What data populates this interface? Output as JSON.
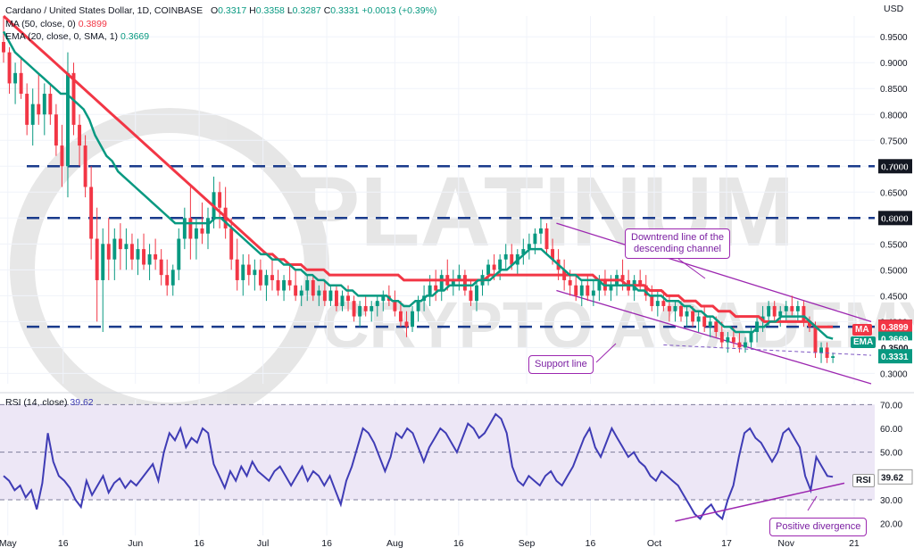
{
  "header": {
    "symbol": "Cardano / United States Dollar, 1D, COINBASE",
    "o_label": "O",
    "o": "0.3317",
    "h_label": "H",
    "h": "0.3358",
    "l_label": "L",
    "l": "0.3287",
    "c_label": "C",
    "c": "0.3331",
    "change": "+0.0013 (+0.39%)",
    "ma_line": "MA (50, close, 0)",
    "ma_value": "0.3899",
    "ema_line": "EMA (20, close, 0, SMA, 1)",
    "ema_value": "0.3669",
    "rsi_line": "RSI (14, close)",
    "rsi_value": "39.62",
    "currency": "USD"
  },
  "tags": {
    "ma_label": "MA",
    "ma_value": "0.3899",
    "ema_label": "EMA",
    "ema_value": "0.3669",
    "hidden_value": "0.3500",
    "price_value": "0.3331",
    "rsi_label": "RSI",
    "rsi_value": "39.62"
  },
  "annotations": {
    "downtrend": [
      "Downtrend line of the",
      "descending channel"
    ],
    "support": "Support line",
    "divergence": "Positive divergence"
  },
  "watermark": {
    "line1": "PLATINUM",
    "line2": "CRYPTO ACADEMY"
  },
  "colors": {
    "up": "#089981",
    "down": "#f23645",
    "ma": "#f23645",
    "ema": "#089981",
    "rsi": "#3f3cb5",
    "level": "#1a3b8c",
    "channel": "#9c27b0",
    "rsi_band": "#ede7f6"
  },
  "chart_data": {
    "type": "candlestick",
    "title": "Cardano / United States Dollar, 1D, COINBASE",
    "ylabel": "USD",
    "ylim": [
      0.28,
      0.99
    ],
    "price_ticks": [
      "0.9500",
      "0.9000",
      "0.8500",
      "0.8000",
      "0.7500",
      "0.7000",
      "0.6500",
      "0.6000",
      "0.5500",
      "0.5000",
      "0.4500",
      "0.4000",
      "0.3500",
      "0.3000"
    ],
    "price_tick_values": [
      0.95,
      0.9,
      0.85,
      0.8,
      0.75,
      0.7,
      0.65,
      0.6,
      0.55,
      0.5,
      0.45,
      0.4,
      0.35,
      0.3
    ],
    "x_ticks": [
      "May",
      "16",
      "Jun",
      "16",
      "Jul",
      "16",
      "Aug",
      "16",
      "Sep",
      "16",
      "Oct",
      "17",
      "Nov",
      "21"
    ],
    "x_tick_index": [
      1,
      14,
      31,
      46,
      61,
      76,
      92,
      107,
      123,
      138,
      153,
      170,
      184,
      200
    ],
    "total_days": 205,
    "levels": [
      {
        "value": 0.7,
        "label": "0.7000"
      },
      {
        "value": 0.6,
        "label": "0.6000"
      },
      {
        "value": 0.39,
        "label": "0.3900"
      }
    ],
    "candles": [
      [
        0.94,
        0.99,
        0.9,
        0.92
      ],
      [
        0.92,
        0.93,
        0.84,
        0.86
      ],
      [
        0.86,
        0.9,
        0.82,
        0.88
      ],
      [
        0.88,
        0.91,
        0.83,
        0.84
      ],
      [
        0.84,
        0.86,
        0.76,
        0.78
      ],
      [
        0.78,
        0.85,
        0.74,
        0.82
      ],
      [
        0.82,
        0.88,
        0.78,
        0.8
      ],
      [
        0.8,
        0.86,
        0.76,
        0.84
      ],
      [
        0.84,
        0.86,
        0.78,
        0.8
      ],
      [
        0.8,
        0.82,
        0.72,
        0.74
      ],
      [
        0.74,
        0.78,
        0.66,
        0.7
      ],
      [
        0.7,
        0.92,
        0.64,
        0.88
      ],
      [
        0.88,
        0.9,
        0.76,
        0.78
      ],
      [
        0.78,
        0.8,
        0.7,
        0.74
      ],
      [
        0.74,
        0.76,
        0.64,
        0.66
      ],
      [
        0.66,
        0.7,
        0.52,
        0.56
      ],
      [
        0.56,
        0.62,
        0.4,
        0.48
      ],
      [
        0.48,
        0.58,
        0.38,
        0.55
      ],
      [
        0.55,
        0.6,
        0.48,
        0.52
      ],
      [
        0.52,
        0.58,
        0.48,
        0.56
      ],
      [
        0.56,
        0.59,
        0.5,
        0.54
      ],
      [
        0.54,
        0.58,
        0.5,
        0.55
      ],
      [
        0.55,
        0.57,
        0.5,
        0.52
      ],
      [
        0.52,
        0.56,
        0.49,
        0.54
      ],
      [
        0.54,
        0.57,
        0.5,
        0.51
      ],
      [
        0.51,
        0.55,
        0.48,
        0.53
      ],
      [
        0.53,
        0.56,
        0.5,
        0.52
      ],
      [
        0.52,
        0.54,
        0.47,
        0.49
      ],
      [
        0.49,
        0.52,
        0.45,
        0.47
      ],
      [
        0.47,
        0.51,
        0.45,
        0.5
      ],
      [
        0.5,
        0.58,
        0.48,
        0.56
      ],
      [
        0.56,
        0.62,
        0.54,
        0.6
      ],
      [
        0.6,
        0.66,
        0.52,
        0.56
      ],
      [
        0.56,
        0.6,
        0.52,
        0.58
      ],
      [
        0.58,
        0.63,
        0.55,
        0.57
      ],
      [
        0.57,
        0.62,
        0.54,
        0.6
      ],
      [
        0.6,
        0.68,
        0.58,
        0.65
      ],
      [
        0.65,
        0.67,
        0.58,
        0.62
      ],
      [
        0.62,
        0.66,
        0.56,
        0.58
      ],
      [
        0.58,
        0.6,
        0.5,
        0.52
      ],
      [
        0.52,
        0.56,
        0.46,
        0.48
      ],
      [
        0.48,
        0.53,
        0.45,
        0.51
      ],
      [
        0.51,
        0.53,
        0.47,
        0.49
      ],
      [
        0.49,
        0.52,
        0.46,
        0.5
      ],
      [
        0.5,
        0.52,
        0.46,
        0.47
      ],
      [
        0.47,
        0.5,
        0.44,
        0.49
      ],
      [
        0.49,
        0.52,
        0.46,
        0.48
      ],
      [
        0.48,
        0.5,
        0.45,
        0.46
      ],
      [
        0.46,
        0.49,
        0.44,
        0.48
      ],
      [
        0.48,
        0.51,
        0.46,
        0.47
      ],
      [
        0.47,
        0.5,
        0.44,
        0.45
      ],
      [
        0.45,
        0.47,
        0.43,
        0.46
      ],
      [
        0.46,
        0.49,
        0.44,
        0.48
      ],
      [
        0.48,
        0.49,
        0.44,
        0.45
      ],
      [
        0.45,
        0.47,
        0.43,
        0.46
      ],
      [
        0.46,
        0.48,
        0.43,
        0.44
      ],
      [
        0.44,
        0.47,
        0.43,
        0.46
      ],
      [
        0.46,
        0.47,
        0.42,
        0.43
      ],
      [
        0.43,
        0.46,
        0.42,
        0.45
      ],
      [
        0.45,
        0.47,
        0.42,
        0.44
      ],
      [
        0.44,
        0.45,
        0.4,
        0.41
      ],
      [
        0.41,
        0.44,
        0.39,
        0.43
      ],
      [
        0.43,
        0.45,
        0.41,
        0.42
      ],
      [
        0.42,
        0.44,
        0.4,
        0.43
      ],
      [
        0.43,
        0.45,
        0.41,
        0.44
      ],
      [
        0.44,
        0.46,
        0.42,
        0.45
      ],
      [
        0.45,
        0.47,
        0.43,
        0.44
      ],
      [
        0.44,
        0.46,
        0.41,
        0.42
      ],
      [
        0.42,
        0.44,
        0.39,
        0.4
      ],
      [
        0.4,
        0.42,
        0.37,
        0.39
      ],
      [
        0.39,
        0.43,
        0.38,
        0.42
      ],
      [
        0.42,
        0.45,
        0.4,
        0.44
      ],
      [
        0.44,
        0.47,
        0.42,
        0.45
      ],
      [
        0.45,
        0.49,
        0.43,
        0.47
      ],
      [
        0.47,
        0.5,
        0.44,
        0.46
      ],
      [
        0.46,
        0.5,
        0.44,
        0.49
      ],
      [
        0.49,
        0.52,
        0.46,
        0.47
      ],
      [
        0.47,
        0.5,
        0.45,
        0.48
      ],
      [
        0.48,
        0.51,
        0.46,
        0.49
      ],
      [
        0.49,
        0.5,
        0.45,
        0.46
      ],
      [
        0.46,
        0.48,
        0.43,
        0.44
      ],
      [
        0.44,
        0.48,
        0.42,
        0.47
      ],
      [
        0.47,
        0.5,
        0.45,
        0.49
      ],
      [
        0.49,
        0.52,
        0.47,
        0.51
      ],
      [
        0.51,
        0.53,
        0.48,
        0.5
      ],
      [
        0.5,
        0.53,
        0.48,
        0.52
      ],
      [
        0.52,
        0.55,
        0.5,
        0.53
      ],
      [
        0.53,
        0.55,
        0.5,
        0.51
      ],
      [
        0.51,
        0.54,
        0.49,
        0.53
      ],
      [
        0.53,
        0.56,
        0.51,
        0.54
      ],
      [
        0.54,
        0.57,
        0.52,
        0.55
      ],
      [
        0.55,
        0.58,
        0.53,
        0.57
      ],
      [
        0.57,
        0.6,
        0.55,
        0.58
      ],
      [
        0.58,
        0.59,
        0.53,
        0.54
      ],
      [
        0.54,
        0.56,
        0.51,
        0.52
      ],
      [
        0.52,
        0.54,
        0.48,
        0.5
      ],
      [
        0.5,
        0.52,
        0.46,
        0.48
      ],
      [
        0.48,
        0.5,
        0.45,
        0.47
      ],
      [
        0.47,
        0.49,
        0.44,
        0.45
      ],
      [
        0.45,
        0.48,
        0.43,
        0.47
      ],
      [
        0.47,
        0.49,
        0.44,
        0.45
      ],
      [
        0.45,
        0.48,
        0.43,
        0.46
      ],
      [
        0.46,
        0.49,
        0.44,
        0.48
      ],
      [
        0.48,
        0.5,
        0.45,
        0.46
      ],
      [
        0.46,
        0.49,
        0.44,
        0.47
      ],
      [
        0.47,
        0.5,
        0.45,
        0.49
      ],
      [
        0.49,
        0.52,
        0.46,
        0.48
      ],
      [
        0.48,
        0.5,
        0.45,
        0.46
      ],
      [
        0.46,
        0.49,
        0.44,
        0.48
      ],
      [
        0.48,
        0.5,
        0.46,
        0.47
      ],
      [
        0.47,
        0.49,
        0.44,
        0.45
      ],
      [
        0.45,
        0.47,
        0.42,
        0.43
      ],
      [
        0.43,
        0.46,
        0.41,
        0.44
      ],
      [
        0.44,
        0.46,
        0.42,
        0.43
      ],
      [
        0.43,
        0.45,
        0.4,
        0.42
      ],
      [
        0.42,
        0.44,
        0.4,
        0.43
      ],
      [
        0.43,
        0.44,
        0.4,
        0.41
      ],
      [
        0.41,
        0.43,
        0.39,
        0.42
      ],
      [
        0.42,
        0.43,
        0.39,
        0.4
      ],
      [
        0.4,
        0.42,
        0.38,
        0.41
      ],
      [
        0.41,
        0.43,
        0.38,
        0.39
      ],
      [
        0.39,
        0.41,
        0.37,
        0.4
      ],
      [
        0.4,
        0.41,
        0.37,
        0.38
      ],
      [
        0.38,
        0.4,
        0.35,
        0.36
      ],
      [
        0.36,
        0.38,
        0.34,
        0.37
      ],
      [
        0.37,
        0.39,
        0.35,
        0.36
      ],
      [
        0.36,
        0.38,
        0.34,
        0.35
      ],
      [
        0.35,
        0.37,
        0.34,
        0.36
      ],
      [
        0.36,
        0.39,
        0.35,
        0.38
      ],
      [
        0.38,
        0.41,
        0.36,
        0.4
      ],
      [
        0.4,
        0.43,
        0.38,
        0.41
      ],
      [
        0.41,
        0.44,
        0.39,
        0.43
      ],
      [
        0.43,
        0.44,
        0.4,
        0.41
      ],
      [
        0.41,
        0.43,
        0.39,
        0.42
      ],
      [
        0.42,
        0.44,
        0.4,
        0.43
      ],
      [
        0.43,
        0.45,
        0.41,
        0.42
      ],
      [
        0.42,
        0.44,
        0.4,
        0.43
      ],
      [
        0.43,
        0.44,
        0.39,
        0.4
      ],
      [
        0.4,
        0.41,
        0.38,
        0.39
      ],
      [
        0.39,
        0.4,
        0.33,
        0.34
      ],
      [
        0.34,
        0.36,
        0.32,
        0.35
      ],
      [
        0.35,
        0.36,
        0.32,
        0.33
      ],
      [
        0.33,
        0.34,
        0.32,
        0.3331
      ]
    ],
    "ema20": [
      0.96,
      0.94,
      0.92,
      0.91,
      0.9,
      0.89,
      0.88,
      0.87,
      0.86,
      0.85,
      0.84,
      0.84,
      0.83,
      0.82,
      0.81,
      0.79,
      0.76,
      0.74,
      0.72,
      0.71,
      0.69,
      0.68,
      0.67,
      0.66,
      0.65,
      0.64,
      0.63,
      0.62,
      0.61,
      0.6,
      0.59,
      0.59,
      0.59,
      0.59,
      0.59,
      0.59,
      0.59,
      0.6,
      0.6,
      0.59,
      0.58,
      0.57,
      0.56,
      0.55,
      0.54,
      0.53,
      0.53,
      0.52,
      0.52,
      0.51,
      0.51,
      0.5,
      0.5,
      0.49,
      0.49,
      0.48,
      0.48,
      0.47,
      0.47,
      0.47,
      0.46,
      0.46,
      0.45,
      0.45,
      0.45,
      0.45,
      0.45,
      0.45,
      0.44,
      0.44,
      0.43,
      0.43,
      0.44,
      0.44,
      0.45,
      0.45,
      0.46,
      0.46,
      0.47,
      0.47,
      0.47,
      0.47,
      0.47,
      0.48,
      0.48,
      0.48,
      0.49,
      0.5,
      0.5,
      0.51,
      0.52,
      0.53,
      0.54,
      0.54,
      0.54,
      0.53,
      0.52,
      0.51,
      0.5,
      0.49,
      0.49,
      0.48,
      0.48,
      0.48,
      0.48,
      0.47,
      0.47,
      0.47,
      0.47,
      0.47,
      0.47,
      0.46,
      0.46,
      0.45,
      0.45,
      0.45,
      0.44,
      0.44,
      0.44,
      0.43,
      0.43,
      0.42,
      0.42,
      0.41,
      0.41,
      0.4,
      0.39,
      0.39,
      0.38,
      0.38,
      0.38,
      0.38,
      0.39,
      0.39,
      0.4,
      0.4,
      0.41,
      0.41,
      0.41,
      0.41,
      0.41,
      0.4,
      0.39,
      0.38,
      0.37,
      0.3669
    ],
    "ma50": [
      0.99,
      0.98,
      0.97,
      0.96,
      0.95,
      0.94,
      0.93,
      0.92,
      0.91,
      0.9,
      0.89,
      0.88,
      0.87,
      0.86,
      0.85,
      0.84,
      0.83,
      0.82,
      0.81,
      0.8,
      0.79,
      0.78,
      0.77,
      0.76,
      0.75,
      0.74,
      0.73,
      0.72,
      0.71,
      0.7,
      0.69,
      0.68,
      0.67,
      0.66,
      0.65,
      0.64,
      0.63,
      0.62,
      0.61,
      0.6,
      0.59,
      0.58,
      0.57,
      0.56,
      0.55,
      0.54,
      0.53,
      0.53,
      0.52,
      0.52,
      0.51,
      0.51,
      0.51,
      0.5,
      0.5,
      0.5,
      0.5,
      0.49,
      0.49,
      0.49,
      0.49,
      0.49,
      0.49,
      0.49,
      0.49,
      0.49,
      0.49,
      0.49,
      0.49,
      0.49,
      0.48,
      0.48,
      0.48,
      0.48,
      0.48,
      0.48,
      0.48,
      0.48,
      0.48,
      0.48,
      0.48,
      0.48,
      0.48,
      0.48,
      0.48,
      0.49,
      0.49,
      0.49,
      0.49,
      0.49,
      0.49,
      0.49,
      0.49,
      0.49,
      0.49,
      0.49,
      0.49,
      0.49,
      0.49,
      0.49,
      0.49,
      0.49,
      0.49,
      0.49,
      0.48,
      0.48,
      0.48,
      0.48,
      0.48,
      0.47,
      0.47,
      0.47,
      0.47,
      0.46,
      0.46,
      0.46,
      0.45,
      0.45,
      0.45,
      0.44,
      0.44,
      0.44,
      0.43,
      0.43,
      0.43,
      0.42,
      0.42,
      0.42,
      0.41,
      0.41,
      0.41,
      0.41,
      0.41,
      0.4,
      0.4,
      0.4,
      0.4,
      0.4,
      0.4,
      0.4,
      0.4,
      0.4,
      0.39,
      0.39,
      0.39,
      0.3899
    ],
    "channel_upper": {
      "start": [
        0.59
      ],
      "end": [
        0.4
      ]
    },
    "channel_lower": {
      "start": [
        0.46
      ],
      "end": [
        0.28
      ]
    },
    "rsi": {
      "ticks": [
        "70.00",
        "60.00",
        "50.00",
        "40.00",
        "30.00",
        "20.00"
      ],
      "tick_values": [
        70,
        60,
        50,
        40,
        30,
        20
      ],
      "ylim": [
        15,
        72
      ],
      "band": [
        30,
        70
      ],
      "values": [
        40,
        38,
        34,
        36,
        31,
        34,
        26,
        37,
        58,
        46,
        40,
        38,
        35,
        30,
        27,
        38,
        32,
        36,
        40,
        33,
        37,
        39,
        35,
        38,
        36,
        39,
        42,
        45,
        38,
        50,
        58,
        55,
        60,
        52,
        56,
        54,
        60,
        58,
        45,
        40,
        35,
        42,
        38,
        44,
        40,
        46,
        42,
        40,
        38,
        42,
        44,
        40,
        36,
        40,
        44,
        38,
        42,
        40,
        36,
        40,
        34,
        28,
        38,
        44,
        52,
        60,
        58,
        54,
        48,
        42,
        48,
        58,
        56,
        60,
        58,
        52,
        46,
        52,
        56,
        60,
        58,
        54,
        50,
        56,
        62,
        60,
        56,
        58,
        62,
        66,
        64,
        58,
        44,
        38,
        36,
        40,
        38,
        36,
        40,
        42,
        38,
        36,
        40,
        44,
        50,
        56,
        60,
        52,
        48,
        54,
        60,
        56,
        52,
        48,
        50,
        46,
        44,
        40,
        38,
        42,
        40,
        38,
        36,
        32,
        28,
        24,
        22,
        26,
        28,
        24,
        22,
        30,
        36,
        48,
        58,
        60,
        56,
        54,
        50,
        46,
        50,
        58,
        60,
        56,
        52,
        40,
        34,
        48,
        44,
        40,
        39.62
      ]
    },
    "support_line": "start 0.35 at day 168, end 0.33 at day 205",
    "divergence_line": "RSI rising trend"
  }
}
